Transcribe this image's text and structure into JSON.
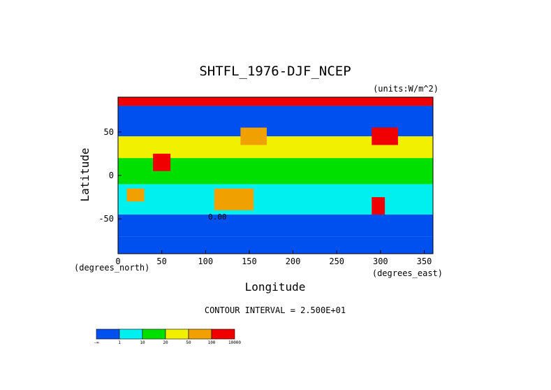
{
  "chart_data": {
    "type": "heatmap",
    "title": "SHTFL_1976-DJF_NCEP",
    "units_label": "(units:W/m^2)",
    "xlabel": "Longitude",
    "ylabel": "Latitude",
    "x_unit_label": "(degrees_east)",
    "y_unit_label": "(degrees_north)",
    "xlim": [
      0,
      360
    ],
    "ylim": [
      -90,
      90
    ],
    "x_ticks": [
      "0",
      "50",
      "100",
      "150",
      "200",
      "250",
      "300",
      "350"
    ],
    "y_ticks": [
      "50",
      "0",
      "-50"
    ],
    "contour_interval_text": "CONTOUR INTERVAL = 2.500E+01",
    "contour_label": "0.00",
    "colorbar": {
      "labels": [
        "-∞",
        "1",
        "10",
        "20",
        "50",
        "100",
        "10000"
      ],
      "colors": [
        "#0050f0",
        "#00f0f0",
        "#00e000",
        "#f0f000",
        "#f0a000",
        "#f00000"
      ]
    },
    "regions": [
      {
        "lon": [
          0,
          360
        ],
        "lat": [
          -90,
          -70
        ],
        "level": 0
      },
      {
        "lon": [
          0,
          360
        ],
        "lat": [
          -70,
          -45
        ],
        "level": 0
      },
      {
        "lon": [
          0,
          360
        ],
        "lat": [
          -45,
          -10
        ],
        "level": 1
      },
      {
        "lon": [
          0,
          360
        ],
        "lat": [
          -10,
          20
        ],
        "level": 2
      },
      {
        "lon": [
          0,
          360
        ],
        "lat": [
          20,
          45
        ],
        "level": 3
      },
      {
        "lon": [
          0,
          360
        ],
        "lat": [
          45,
          80
        ],
        "level": 0
      },
      {
        "lon": [
          0,
          360
        ],
        "lat": [
          80,
          90
        ],
        "level": 5
      },
      {
        "lon": [
          120,
          150
        ],
        "lat": [
          -35,
          -20
        ],
        "level": 5
      },
      {
        "lon": [
          110,
          155
        ],
        "lat": [
          -40,
          -15
        ],
        "level": 4
      },
      {
        "lon": [
          10,
          30
        ],
        "lat": [
          -30,
          -15
        ],
        "level": 4
      },
      {
        "lon": [
          290,
          305
        ],
        "lat": [
          -45,
          -25
        ],
        "level": 5
      },
      {
        "lon": [
          140,
          170
        ],
        "lat": [
          35,
          55
        ],
        "level": 4
      },
      {
        "lon": [
          290,
          320
        ],
        "lat": [
          35,
          55
        ],
        "level": 5
      },
      {
        "lon": [
          40,
          60
        ],
        "lat": [
          5,
          25
        ],
        "level": 5
      }
    ]
  }
}
